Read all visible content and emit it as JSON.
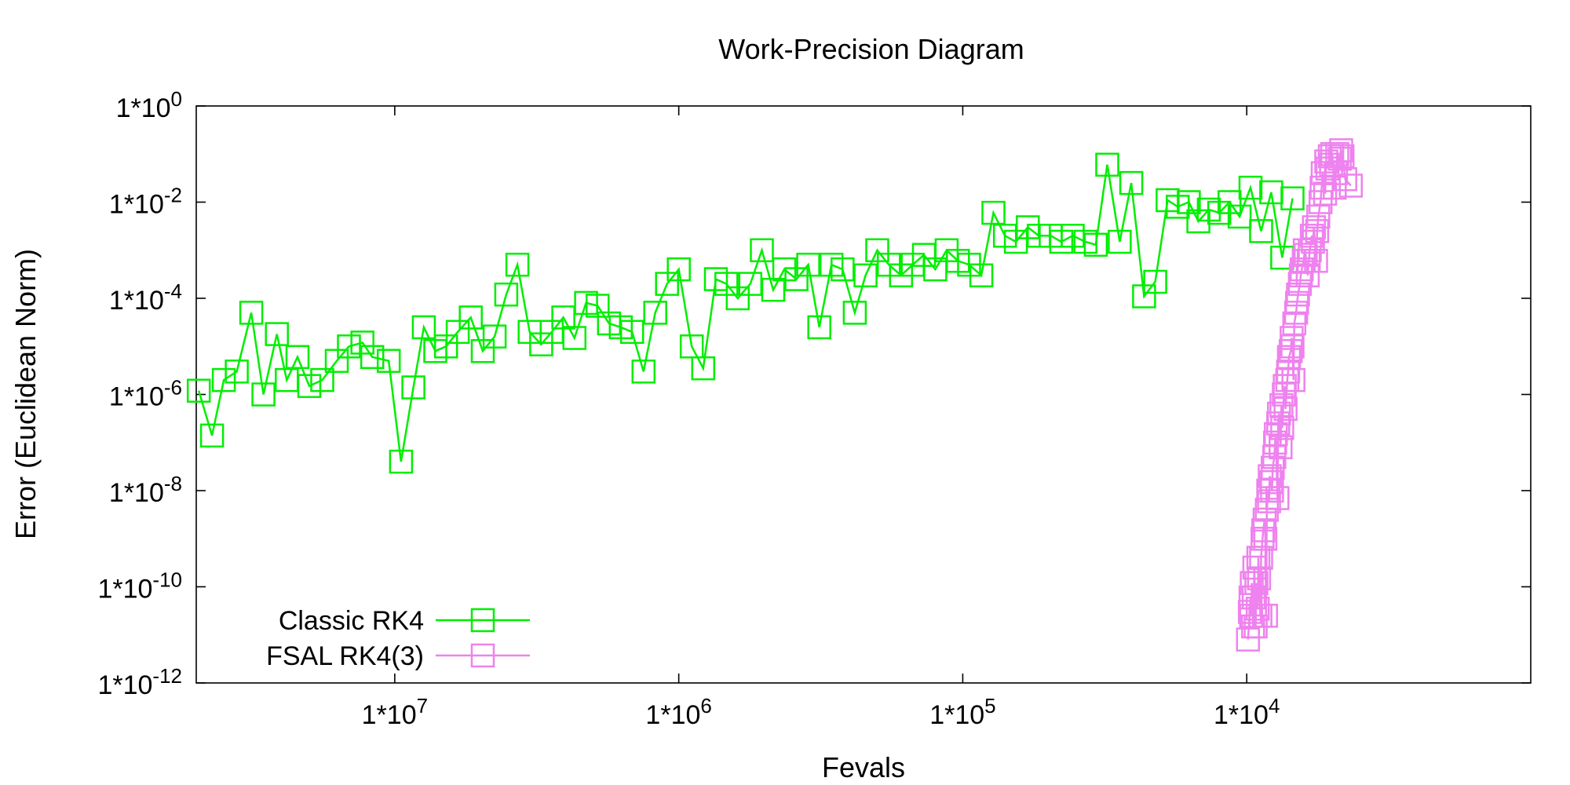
{
  "chart_data": {
    "type": "line",
    "title": "Work-Precision Diagram",
    "xlabel": "Fevals",
    "ylabel": "Error (Euclidean Norm)",
    "x_scale": "log",
    "x_reversed": true,
    "y_scale": "log",
    "xlim": [
      50000000,
      1000
    ],
    "ylim": [
      1e-12,
      1
    ],
    "x_ticks": [
      {
        "value": 10000000,
        "label": "1*10^7"
      },
      {
        "value": 1000000,
        "label": "1*10^6"
      },
      {
        "value": 100000,
        "label": "1*10^5"
      },
      {
        "value": 10000,
        "label": "1*10^4"
      }
    ],
    "y_ticks": [
      {
        "value": 1,
        "label": "1*10^0"
      },
      {
        "value": 0.01,
        "label": "1*10^-2"
      },
      {
        "value": 0.0001,
        "label": "1*10^-4"
      },
      {
        "value": 1e-06,
        "label": "1*10^-6"
      },
      {
        "value": 1e-08,
        "label": "1*10^-8"
      },
      {
        "value": 1e-10,
        "label": "1*10^-10"
      },
      {
        "value": 1e-12,
        "label": "1*10^-12"
      }
    ],
    "grid": false,
    "legend_position": "bottom-left",
    "series": [
      {
        "name": "Classic RK4",
        "color": "#00ee00",
        "marker": "open-square",
        "points": [
          [
            49000000,
            1.2e-06
          ],
          [
            44000000,
            1.4e-07
          ],
          [
            40000000,
            2e-06
          ],
          [
            36000000,
            3e-06
          ],
          [
            32000000,
            5e-05
          ],
          [
            29000000,
            1e-06
          ],
          [
            26000000,
            1.8e-05
          ],
          [
            24000000,
            2e-06
          ],
          [
            22000000,
            6e-06
          ],
          [
            20000000,
            1.5e-06
          ],
          [
            18000000,
            2e-06
          ],
          [
            16000000,
            5e-06
          ],
          [
            14500000,
            1e-05
          ],
          [
            13000000,
            1.2e-05
          ],
          [
            12000000,
            6e-06
          ],
          [
            10500000,
            5e-06
          ],
          [
            9500000,
            4e-08
          ],
          [
            8600000,
            1.4e-06
          ],
          [
            7900000,
            2.5e-05
          ],
          [
            7200000,
            8e-06
          ],
          [
            6600000,
            1e-05
          ],
          [
            6000000,
            2e-05
          ],
          [
            5400000,
            4e-05
          ],
          [
            4900000,
            8e-06
          ],
          [
            4450000,
            1.6e-05
          ],
          [
            4050000,
            0.00012
          ],
          [
            3700000,
            0.0005
          ],
          [
            3350000,
            2e-05
          ],
          [
            3050000,
            1.1e-05
          ],
          [
            2800000,
            2e-05
          ],
          [
            2550000,
            4e-05
          ],
          [
            2330000,
            1.5e-05
          ],
          [
            2120000,
            8e-05
          ],
          [
            1930000,
            7e-05
          ],
          [
            1760000,
            3e-05
          ],
          [
            1600000,
            2.5e-05
          ],
          [
            1460000,
            2e-05
          ],
          [
            1330000,
            3e-06
          ],
          [
            1210000,
            5e-05
          ],
          [
            1100000,
            0.0002
          ],
          [
            1000000,
            0.0004
          ],
          [
            900000,
            1e-05
          ],
          [
            820000,
            3.5e-06
          ],
          [
            740000,
            0.00025
          ],
          [
            680000,
            0.0002
          ],
          [
            620000,
            0.0001
          ],
          [
            560000,
            0.0002
          ],
          [
            510000,
            0.001
          ],
          [
            465000,
            0.00015
          ],
          [
            425000,
            0.0004
          ],
          [
            385000,
            0.00025
          ],
          [
            350000,
            0.0005
          ],
          [
            320000,
            2.5e-05
          ],
          [
            290000,
            0.0005
          ],
          [
            265000,
            0.0004
          ],
          [
            240000,
            5e-05
          ],
          [
            220000,
            0.0003
          ],
          [
            200000,
            0.001
          ],
          [
            182000,
            0.0005
          ],
          [
            165000,
            0.0003
          ],
          [
            150000,
            0.0005
          ],
          [
            137000,
            0.0008
          ],
          [
            125000,
            0.0004
          ],
          [
            114000,
            0.001
          ],
          [
            104000,
            0.0006
          ],
          [
            95000,
            0.0005
          ],
          [
            86000,
            0.0003
          ],
          [
            78000,
            0.006
          ],
          [
            71000,
            0.002
          ],
          [
            65000,
            0.0015
          ],
          [
            59000,
            0.003
          ],
          [
            54000,
            0.002
          ],
          [
            49000,
            0.002
          ],
          [
            45000,
            0.0015
          ],
          [
            41000,
            0.002
          ],
          [
            37000,
            0.0015
          ],
          [
            34000,
            0.0013
          ],
          [
            31000,
            0.06
          ],
          [
            28000,
            0.0015
          ],
          [
            25500,
            0.025
          ],
          [
            23000,
            0.00011
          ],
          [
            21000,
            0.00022
          ],
          [
            19000,
            0.011
          ],
          [
            17500,
            0.008
          ],
          [
            16000,
            0.01
          ],
          [
            14800,
            0.004
          ],
          [
            13600,
            0.007
          ],
          [
            12500,
            0.006
          ],
          [
            11500,
            0.01
          ],
          [
            10600,
            0.005
          ],
          [
            9700,
            0.02
          ],
          [
            8900,
            0.0025
          ],
          [
            8200,
            0.016
          ],
          [
            7500,
            0.0007
          ],
          [
            6900,
            0.012
          ]
        ]
      },
      {
        "name": "FSAL RK4(3)",
        "color": "#ee82ee",
        "marker": "open-square",
        "points": [
          [
            9900,
            8e-12
          ],
          [
            9750,
            3e-11
          ],
          [
            9700,
            6e-11
          ],
          [
            9650,
            2.5e-11
          ],
          [
            9600,
            1.2e-10
          ],
          [
            9500,
            1.5e-11
          ],
          [
            9450,
            6e-11
          ],
          [
            9400,
            2.5e-10
          ],
          [
            9300,
            1.5e-11
          ],
          [
            9250,
            1.2e-10
          ],
          [
            9150,
            3.5e-11
          ],
          [
            9100,
            4e-10
          ],
          [
            9050,
            1.5e-10
          ],
          [
            8950,
            2.5e-11
          ],
          [
            8900,
            4e-10
          ],
          [
            8800,
            1e-09
          ],
          [
            8750,
            1.5e-09
          ],
          [
            8650,
            2.5e-09
          ],
          [
            8600,
            1e-09
          ],
          [
            8550,
            2.5e-11
          ],
          [
            8500,
            4e-09
          ],
          [
            8400,
            1e-08
          ],
          [
            8350,
            6e-09
          ],
          [
            8300,
            2e-08
          ],
          [
            8200,
            1.5e-08
          ],
          [
            8150,
            1e-08
          ],
          [
            8100,
            3e-08
          ],
          [
            8000,
            5e-08
          ],
          [
            7950,
            1e-07
          ],
          [
            7900,
            1.5e-07
          ],
          [
            7800,
            7e-09
          ],
          [
            7750,
            2.5e-07
          ],
          [
            7700,
            4e-07
          ],
          [
            7600,
            8e-08
          ],
          [
            7550,
            6e-07
          ],
          [
            7500,
            2e-07
          ],
          [
            7400,
            1e-06
          ],
          [
            7350,
            1.5e-06
          ],
          [
            7300,
            5e-07
          ],
          [
            7200,
            2e-06
          ],
          [
            7150,
            3e-06
          ],
          [
            7100,
            6e-06
          ],
          [
            7000,
            8e-06
          ],
          [
            6950,
            1.5e-05
          ],
          [
            6900,
            1e-05
          ],
          [
            6850,
            2e-06
          ],
          [
            6800,
            3e-05
          ],
          [
            6700,
            5e-05
          ],
          [
            6650,
            8e-05
          ],
          [
            6600,
            0.00012
          ],
          [
            6500,
            0.0002
          ],
          [
            6450,
            0.0003
          ],
          [
            6400,
            0.0004
          ],
          [
            6300,
            0.0006
          ],
          [
            6250,
            0.001
          ],
          [
            6200,
            0.0008
          ],
          [
            6100,
            0.0003
          ],
          [
            6050,
            0.0006
          ],
          [
            6000,
            0.001
          ],
          [
            5900,
            0.002
          ],
          [
            5850,
            0.0015
          ],
          [
            5800,
            0.003
          ],
          [
            5700,
            0.0006
          ],
          [
            5650,
            0.0025
          ],
          [
            5600,
            0.005
          ],
          [
            5500,
            0.01
          ],
          [
            5450,
            0.02
          ],
          [
            5400,
            0.04
          ],
          [
            5300,
            0.015
          ],
          [
            5250,
            0.07
          ],
          [
            5200,
            0.05
          ],
          [
            5100,
            0.09
          ],
          [
            5050,
            0.06
          ],
          [
            5000,
            0.1
          ],
          [
            4900,
            0.02
          ],
          [
            4850,
            0.04
          ],
          [
            4800,
            0.1
          ],
          [
            4700,
            0.08
          ],
          [
            4650,
            0.12
          ],
          [
            4600,
            0.09
          ],
          [
            4500,
            0.03
          ],
          [
            4300,
            0.022
          ]
        ]
      }
    ]
  }
}
